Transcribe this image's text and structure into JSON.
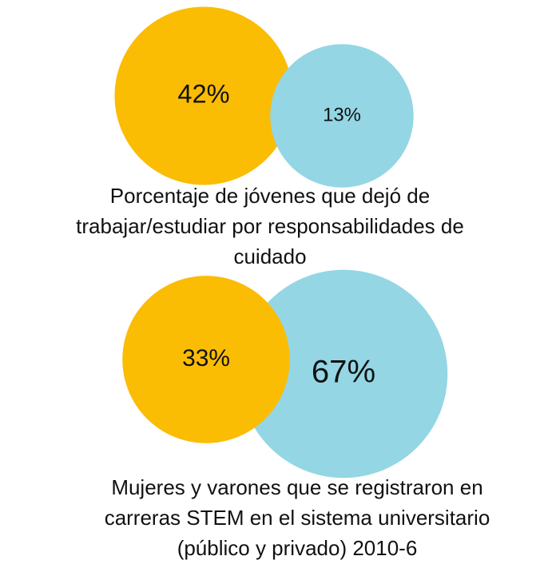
{
  "chart_data": [
    {
      "type": "circles",
      "title": [
        "Porcentaje de jóvenes que dejó de",
        "trabajar/estudiar por responsabilidades de",
        "cuidado"
      ],
      "values": [
        42,
        13
      ],
      "value_labels": [
        "42%",
        "13%"
      ],
      "colors": [
        "#fbbc04",
        "#94d6e4"
      ]
    },
    {
      "type": "circles",
      "title": [
        "Mujeres y varones que se registraron en",
        "carreras STEM en el sistema universitario",
        "(público y privado) 2010-6"
      ],
      "values": [
        33,
        67
      ],
      "value_labels": [
        "33%",
        "67%"
      ],
      "colors": [
        "#fbbc04",
        "#94d6e4"
      ]
    }
  ]
}
